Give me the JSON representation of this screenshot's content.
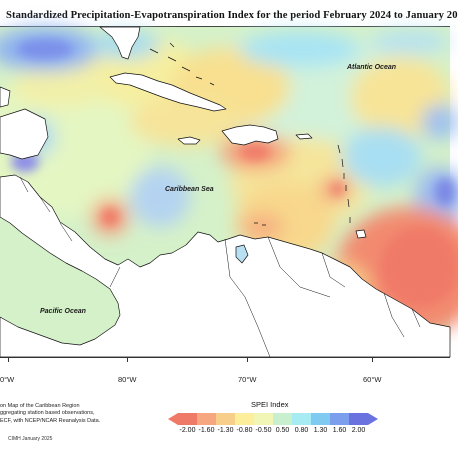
{
  "title": "Standardized Precipitation-Evapotranspiration Index for the period February 2024 to January 20",
  "map": {
    "labels": {
      "atlantic": "Atlantic Ocean",
      "caribbean": "Caribbean Sea",
      "pacific": "Pacific Ocean"
    },
    "longitude_ticks": [
      "0°W",
      "80°W",
      "70°W",
      "60°W"
    ],
    "land_color": "#ffffff",
    "coastline_color": "#111111"
  },
  "caption": {
    "line1": "on Map of the Caribbean Region",
    "line2": "ggregating station based observations,",
    "line3": "ECF, with NCEP/NCAR Reanalysis Data."
  },
  "credit": "CIMH January 2025",
  "legend": {
    "title": "SPEI Index",
    "ticks": [
      "-2.00",
      "-1.60",
      "-1.30",
      "-0.80",
      "-0.50",
      "0.50",
      "0.80",
      "1.30",
      "1.60",
      "2.00"
    ],
    "colors": [
      "#f07a68",
      "#f6a77f",
      "#f8cf8a",
      "#fcee9a",
      "#f1f6b6",
      "#c8f0cf",
      "#a6ecf2",
      "#7fcaf1",
      "#7b9fec",
      "#6a72df"
    ]
  }
}
